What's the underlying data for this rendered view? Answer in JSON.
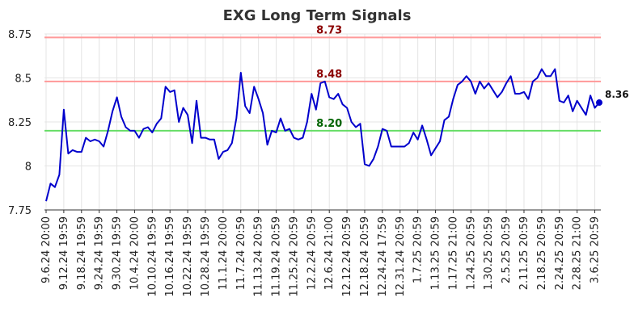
{
  "chart_data": {
    "type": "line",
    "title": "EXG Long Term Signals",
    "xlabel": "",
    "ylabel": "",
    "ylim": [
      7.75,
      8.75
    ],
    "yticks": [
      "7.75",
      "8",
      "8.25",
      "8.5",
      "8.75"
    ],
    "ytick_values": [
      7.75,
      8.0,
      8.25,
      8.5,
      8.75
    ],
    "grid": true,
    "line_color": "#0000cc",
    "xtick_labels": [
      "9.6.24 20:00",
      "9.12.24 19:59",
      "9.18.24 19:59",
      "9.24.24 19:59",
      "9.30.24 19:59",
      "10.4.24 20:00",
      "10.10.24 19:59",
      "10.16.24 19:59",
      "10.22.24 19:59",
      "10.28.24 19:59",
      "11.1.24 20:00",
      "11.7.24 20:59",
      "11.13.24 20:59",
      "11.19.24 20:59",
      "11.25.24 20:59",
      "12.2.24 20:59",
      "12.6.24 21:00",
      "12.12.24 20:59",
      "12.18.24 20:59",
      "12.24.24 17:59",
      "12.31.24 20:59",
      "1.7.25 20:59",
      "1.13.25 20:59",
      "1.17.25 21:00",
      "1.24.25 20:59",
      "1.30.25 20:59",
      "2.5.25 20:59",
      "2.11.25 20:59",
      "2.18.25 20:59",
      "2.24.25 20:59",
      "2.28.25 21:00",
      "3.6.25 20:59"
    ],
    "xtick_indices": [
      0,
      4,
      8,
      12,
      16,
      20,
      24,
      28,
      32,
      36,
      40,
      44,
      48,
      52,
      56,
      60,
      64,
      68,
      72,
      76,
      80,
      84,
      88,
      92,
      96,
      100,
      104,
      108,
      112,
      116,
      120,
      124
    ],
    "values": [
      7.8,
      7.9,
      7.88,
      7.95,
      8.32,
      8.07,
      8.09,
      8.08,
      8.08,
      8.16,
      8.14,
      8.15,
      8.14,
      8.11,
      8.2,
      8.31,
      8.39,
      8.28,
      8.22,
      8.2,
      8.2,
      8.16,
      8.21,
      8.22,
      8.19,
      8.24,
      8.27,
      8.45,
      8.42,
      8.43,
      8.25,
      8.33,
      8.29,
      8.13,
      8.37,
      8.16,
      8.16,
      8.15,
      8.15,
      8.04,
      8.08,
      8.09,
      8.13,
      8.27,
      8.53,
      8.34,
      8.3,
      8.45,
      8.38,
      8.3,
      8.12,
      8.2,
      8.19,
      8.27,
      8.2,
      8.21,
      8.16,
      8.15,
      8.16,
      8.25,
      8.41,
      8.32,
      8.47,
      8.48,
      8.39,
      8.38,
      8.41,
      8.35,
      8.33,
      8.25,
      8.22,
      8.24,
      8.01,
      8.0,
      8.04,
      8.11,
      8.21,
      8.2,
      8.11,
      8.11,
      8.11,
      8.11,
      8.13,
      8.19,
      8.15,
      8.23,
      8.15,
      8.06,
      8.1,
      8.14,
      8.26,
      8.28,
      8.38,
      8.46,
      8.48,
      8.51,
      8.48,
      8.41,
      8.48,
      8.44,
      8.47,
      8.43,
      8.39,
      8.42,
      8.47,
      8.51,
      8.41,
      8.41,
      8.42,
      8.38,
      8.48,
      8.5,
      8.55,
      8.51,
      8.51,
      8.55,
      8.37,
      8.36,
      8.4,
      8.31,
      8.37,
      8.33,
      8.29,
      8.4,
      8.33,
      8.36
    ],
    "reference_lines": [
      {
        "label": "8.73",
        "value": 8.73,
        "color": "#ff9999",
        "label_color": "#8b0000"
      },
      {
        "label": "8.48",
        "value": 8.48,
        "color": "#ff9999",
        "label_color": "#8b0000"
      },
      {
        "label": "8.20",
        "value": 8.2,
        "color": "#66dd66",
        "label_color": "#006400"
      }
    ],
    "last_value_label": "8.36"
  }
}
